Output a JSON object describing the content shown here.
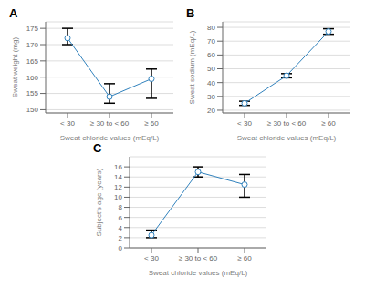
{
  "chart_data": [
    {
      "type": "line",
      "title": "A",
      "categories": [
        "< 30",
        "≥ 30 to < 60",
        "≥ 60"
      ],
      "values": [
        172,
        154,
        159.5
      ],
      "error_low": [
        2,
        2,
        6
      ],
      "error_high": [
        3,
        4,
        3
      ],
      "xlabel": "Sweat chloride values (mEq/L)",
      "ylabel": "Sweat weight (mg)",
      "ylim": [
        149,
        177
      ],
      "yticks": [
        150,
        155,
        160,
        165,
        170,
        175
      ],
      "grid": true,
      "marker": "circle"
    },
    {
      "type": "line",
      "title": "B",
      "categories": [
        "< 30",
        "≥ 30 to < 60",
        "≥ 60"
      ],
      "values": [
        25,
        45,
        77
      ],
      "error_low": [
        1.5,
        1.5,
        2
      ],
      "error_high": [
        1.5,
        1.5,
        2
      ],
      "xlabel": "Sweat chloride values (mEq/L)",
      "ylabel": "Sweat sodium (mEq/L)",
      "ylim": [
        18,
        84
      ],
      "yticks": [
        20,
        30,
        40,
        50,
        60,
        70,
        80
      ],
      "grid": true,
      "marker": "circle"
    },
    {
      "type": "line",
      "title": "C",
      "categories": [
        "< 30",
        "≥ 30 to < 60",
        "≥ 60"
      ],
      "values": [
        2.5,
        15,
        12.5
      ],
      "error_low": [
        0.5,
        1,
        2.5
      ],
      "error_high": [
        1,
        1,
        2
      ],
      "xlabel": "Sweat chloride values (mEq/L)",
      "ylabel": "Subject's age (years)",
      "ylim": [
        0,
        18
      ],
      "yticks": [
        0,
        2,
        4,
        6,
        8,
        10,
        12,
        14,
        16
      ],
      "grid": true,
      "marker": "circle"
    }
  ]
}
